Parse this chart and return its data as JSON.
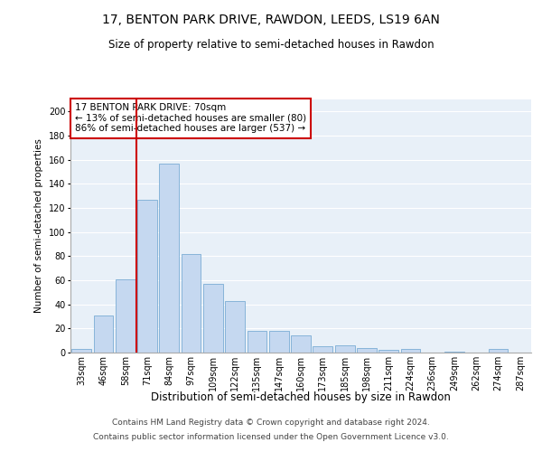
{
  "title1": "17, BENTON PARK DRIVE, RAWDON, LEEDS, LS19 6AN",
  "title2": "Size of property relative to semi-detached houses in Rawdon",
  "xlabel": "Distribution of semi-detached houses by size in Rawdon",
  "ylabel": "Number of semi-detached properties",
  "categories": [
    "33sqm",
    "46sqm",
    "58sqm",
    "71sqm",
    "84sqm",
    "97sqm",
    "109sqm",
    "122sqm",
    "135sqm",
    "147sqm",
    "160sqm",
    "173sqm",
    "185sqm",
    "198sqm",
    "211sqm",
    "224sqm",
    "236sqm",
    "249sqm",
    "262sqm",
    "274sqm",
    "287sqm"
  ],
  "values": [
    3,
    31,
    61,
    127,
    157,
    82,
    57,
    43,
    18,
    18,
    14,
    5,
    6,
    4,
    2,
    3,
    0,
    1,
    0,
    3,
    0
  ],
  "bar_color": "#c5d8f0",
  "bar_edge_color": "#7aadd4",
  "vline_color": "#cc0000",
  "vline_x": 2.5,
  "annotation_text": "17 BENTON PARK DRIVE: 70sqm\n← 13% of semi-detached houses are smaller (80)\n86% of semi-detached houses are larger (537) →",
  "ylim": [
    0,
    210
  ],
  "yticks": [
    0,
    20,
    40,
    60,
    80,
    100,
    120,
    140,
    160,
    180,
    200
  ],
  "bg_color": "#e8f0f8",
  "footer_line1": "Contains HM Land Registry data © Crown copyright and database right 2024.",
  "footer_line2": "Contains public sector information licensed under the Open Government Licence v3.0.",
  "title1_fontsize": 10,
  "title2_fontsize": 8.5,
  "xlabel_fontsize": 8.5,
  "ylabel_fontsize": 7.5,
  "tick_fontsize": 7,
  "annotation_fontsize": 7.5,
  "footer_fontsize": 6.5
}
